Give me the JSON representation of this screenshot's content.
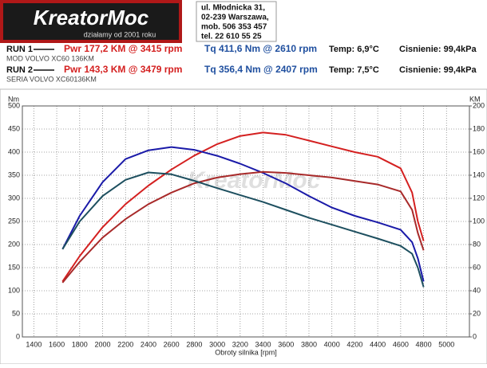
{
  "header": {
    "logo": "KreatorMoc",
    "tagline": "działamy od 2001 roku",
    "address": [
      "ul. Młodnicka 31,",
      "02-239  Warszawa,",
      "mob.  506 353 457",
      "tel.  22 610 55 25"
    ]
  },
  "runs": [
    {
      "label": "RUN 1",
      "car": "MOD VOLVO XC60 136KM",
      "temp": "Temp: 6,9°C",
      "pressure": "Cisnienie: 99,4kPa"
    },
    {
      "label": "RUN 2",
      "car": "SERIA VOLVO XC60136KM",
      "temp": "Temp: 7,5°C",
      "pressure": "Cisnienie: 99,4kPa"
    }
  ],
  "chart_data": {
    "type": "line",
    "y_label": "Nm",
    "y2_label": "KM",
    "x_label": "Obroty silnika [rpm]",
    "x": [
      1650,
      1800,
      2000,
      2200,
      2400,
      2600,
      2800,
      3000,
      3200,
      3400,
      3600,
      3800,
      4000,
      4200,
      4400,
      4600,
      4700,
      4750,
      4800
    ],
    "series": [
      {
        "name": "Pwr  177,2 KM @ 3415 rpm",
        "color": "#d42020",
        "axis": "y2",
        "values": [
          48,
          70,
          95,
          115,
          131,
          145,
          157,
          167,
          174,
          177,
          175,
          170,
          165,
          160,
          156,
          146,
          125,
          100,
          83
        ]
      },
      {
        "name": "Tq  411,6 Nm @ 2610 rpm",
        "color": "#1a1aa8",
        "values": [
          190,
          262,
          335,
          385,
          404,
          411,
          405,
          392,
          375,
          355,
          332,
          305,
          280,
          262,
          248,
          232,
          205,
          170,
          120
        ]
      },
      {
        "name": "Pwr  143,3 KM @ 3479 rpm",
        "color": "#a82a2a",
        "axis": "y2",
        "values": [
          47,
          65,
          86,
          102,
          115,
          125,
          133,
          138,
          141,
          143,
          142,
          140,
          138,
          135,
          132,
          126,
          110,
          90,
          75
        ]
      },
      {
        "name": "Tq  356,4 Nm @ 2407 rpm",
        "color": "#1d4f5f",
        "values": [
          190,
          250,
          305,
          340,
          356,
          352,
          338,
          322,
          307,
          292,
          275,
          258,
          243,
          228,
          213,
          197,
          180,
          150,
          108
        ]
      }
    ],
    "xlim": [
      1300,
      5200
    ],
    "ylim": [
      0,
      500
    ],
    "y2lim": [
      0,
      200
    ],
    "xticks": [
      1400,
      1600,
      1800,
      2000,
      2200,
      2400,
      2600,
      2800,
      3000,
      3200,
      3400,
      3600,
      3800,
      4000,
      4200,
      4400,
      4600,
      4800,
      5000
    ],
    "yticks": [
      0,
      50,
      100,
      150,
      200,
      250,
      300,
      350,
      400,
      450,
      500
    ],
    "y2ticks": [
      0,
      20,
      40,
      60,
      80,
      100,
      120,
      140,
      160,
      180,
      200
    ],
    "grid": true
  }
}
